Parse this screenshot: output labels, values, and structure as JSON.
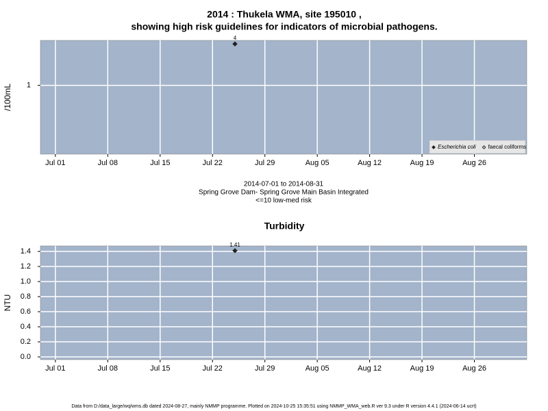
{
  "chart_data": [
    {
      "type": "scatter",
      "title": [
        "2014 : Thukela WMA, site 195010 ,",
        "showing high risk guidelines for indicators of microbial pathogens."
      ],
      "y_label": "/100mL",
      "notes": [
        "2014-07-01 to 2014-08-31",
        "Spring Grove Dam- Spring Grove Main Basin Integrated",
        "<=10 low-med risk"
      ],
      "x": [
        "2014-07-25"
      ],
      "series": [
        {
          "name": "Escherichia coli",
          "color": "#222222",
          "marker": "filled",
          "values": [
            4
          ]
        },
        {
          "name": "faecal coliforms",
          "color": "#222222",
          "marker": "open",
          "values": [
            null
          ]
        }
      ],
      "xlim": [
        "2014-06-29",
        "2014-09-02"
      ],
      "xticks": [
        {
          "value": "2014-07-01",
          "label": "Jul 01"
        },
        {
          "value": "2014-07-08",
          "label": "Jul 08"
        },
        {
          "value": "2014-07-15",
          "label": "Jul 15"
        },
        {
          "value": "2014-07-22",
          "label": "Jul 22"
        },
        {
          "value": "2014-07-29",
          "label": "Jul 29"
        },
        {
          "value": "2014-08-05",
          "label": "Aug 05"
        },
        {
          "value": "2014-08-12",
          "label": "Aug 12"
        },
        {
          "value": "2014-08-19",
          "label": "Aug 19"
        },
        {
          "value": "2014-08-26",
          "label": "Aug 26"
        }
      ],
      "ylim": [
        0.1,
        4.5
      ],
      "yticks": [
        1
      ],
      "log_y": true,
      "grid": true,
      "legend": "bottom-right",
      "background": "#a3b4cb"
    },
    {
      "type": "scatter",
      "title": [
        "Turbidity"
      ],
      "y_label": "NTU",
      "x": [
        "2014-07-25"
      ],
      "series": [
        {
          "name": null,
          "color": "#222222",
          "marker": "filled",
          "values": [
            1.41
          ]
        }
      ],
      "xlim": [
        "2014-06-29",
        "2014-09-02"
      ],
      "xticks": [
        {
          "value": "2014-07-01",
          "label": "Jul 01"
        },
        {
          "value": "2014-07-08",
          "label": "Jul 08"
        },
        {
          "value": "2014-07-15",
          "label": "Jul 15"
        },
        {
          "value": "2014-07-22",
          "label": "Jul 22"
        },
        {
          "value": "2014-07-29",
          "label": "Jul 29"
        },
        {
          "value": "2014-08-05",
          "label": "Aug 05"
        },
        {
          "value": "2014-08-12",
          "label": "Aug 12"
        },
        {
          "value": "2014-08-19",
          "label": "Aug 19"
        },
        {
          "value": "2014-08-26",
          "label": "Aug 26"
        }
      ],
      "ylim": [
        -0.036,
        1.473
      ],
      "yticks": [
        {
          "value": 0,
          "label": "0.0"
        },
        0.2,
        0.4,
        0.6,
        0.8,
        {
          "value": 1,
          "label": "1.0"
        },
        1.2,
        1.4
      ],
      "log_y": false,
      "grid": true,
      "background": "#a3b4cb"
    }
  ],
  "footer": "Data from D:/data_large/wq/wms.db dated 2024-08-27, mainly NMMP programme. Plotted on 2024-10-25 15:35:51 using NMMP_WMA_web.R ver 9.3 under R version 4.4.1 (2024-06-14 ucrt)"
}
